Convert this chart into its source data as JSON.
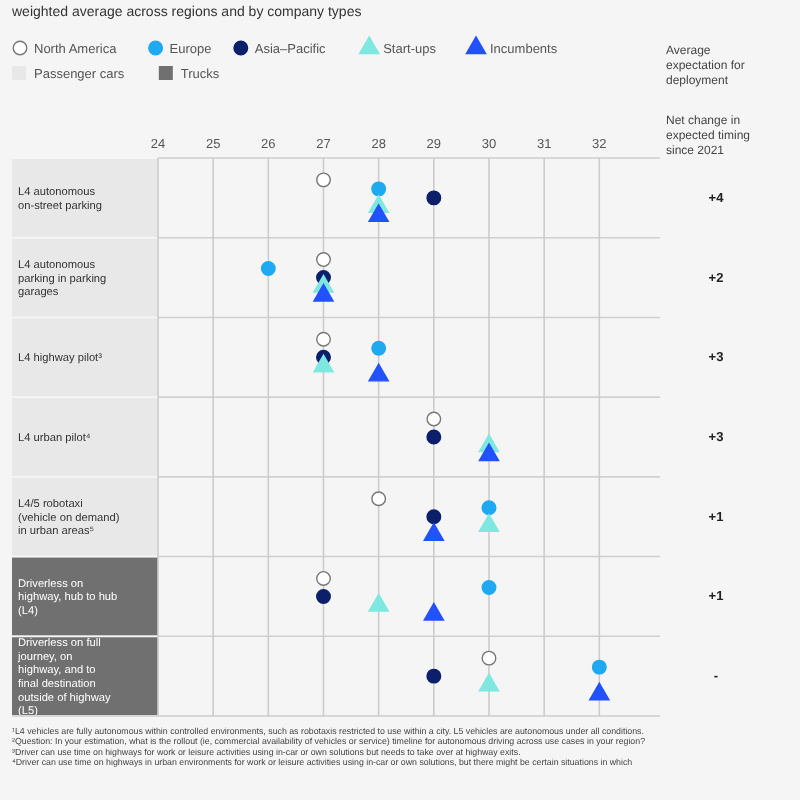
{
  "chart_data": {
    "type": "scatter",
    "orientation": "horizontal",
    "title": "weighted average across regions and by company types",
    "categories": [
      "L4 autonomous on-street parking",
      "L4 autonomous parking in parking garages",
      "L4 highway pilot³",
      "L4 urban pilot⁴",
      "L4/5 robotaxi (vehicle on demand) in urban areas⁵",
      "Driverless on highway, hub to hub (L4)",
      "Driverless on full journey, on highway, and to final destination outside of highway (L5)"
    ],
    "series": [
      {
        "name": "North America",
        "color": "#ffffff",
        "marker": "circle",
        "values": [
          27,
          27,
          27,
          29,
          28,
          27,
          30
        ]
      },
      {
        "name": "Europe",
        "color": "#1fa9f0",
        "marker": "circle",
        "values": [
          28,
          26,
          28,
          null,
          30,
          30,
          32
        ]
      },
      {
        "name": "Asia–Pacific",
        "color": "#0b1f6b",
        "marker": "circle",
        "values": [
          29,
          27,
          27,
          29,
          29,
          27,
          29
        ]
      },
      {
        "name": "Start-ups",
        "color": "#7ee8e0",
        "marker": "triangle",
        "values": [
          28,
          27,
          27,
          30,
          30,
          28,
          30
        ]
      },
      {
        "name": "Incumbents",
        "color": "#2251ff",
        "marker": "triangle",
        "values": [
          28,
          27,
          28,
          30,
          29,
          29,
          32
        ]
      }
    ],
    "xlim": [
      24,
      33.1
    ],
    "xticks": [
      24,
      25,
      26,
      27,
      28,
      29,
      30,
      31,
      32
    ],
    "grid": "x",
    "legend": "top left",
    "annotations": [
      "Passenger cars",
      "Trucks",
      "Average expectation for deployment",
      "Net change in expected timing since 2021",
      "+4",
      "+2",
      "+3",
      "+3",
      "+1",
      "+1",
      "-",
      "¹L4 vehicles are fully autonomous within controlled environments, such as robotaxis restricted to use within a city. L5 vehicles are autonomous under all conditions.",
      "²Question: In your estimation, what is the rollout (ie, commercial availability of vehicles or service) timeline for autonomous driving across use cases in your region?",
      "³Driver can use time on highways for work or leisure activities using in-car or own solutions but needs to take over at highway exits.",
      "⁴Driver can use time on highways in urban environments for work or leisure activities using in-car or own solutions, but there might be certain situations in which"
    ]
  }
}
